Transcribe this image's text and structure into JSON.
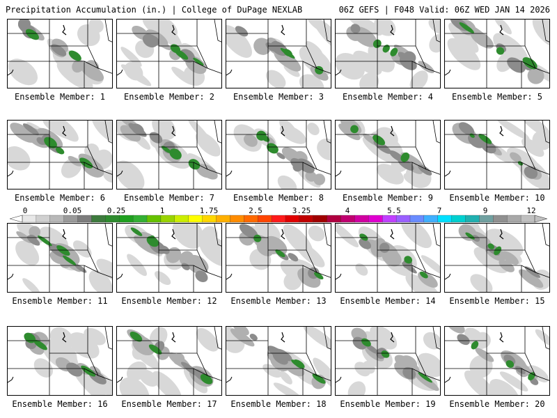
{
  "header": {
    "title_left": "Precipitation Accumulation (in.) | College of DuPage NEXLAB",
    "title_right": "06Z GEFS | F048 Valid: 06Z WED JAN 14 2026"
  },
  "member_label_prefix": "Ensemble Member:",
  "members": [
    {
      "label": "Ensemble Member: 1"
    },
    {
      "label": "Ensemble Member: 2"
    },
    {
      "label": "Ensemble Member: 3"
    },
    {
      "label": "Ensemble Member: 4"
    },
    {
      "label": "Ensemble Member: 5"
    },
    {
      "label": "Ensemble Member: 6"
    },
    {
      "label": "Ensemble Member: 7"
    },
    {
      "label": "Ensemble Member: 8"
    },
    {
      "label": "Ensemble Member: 9"
    },
    {
      "label": "Ensemble Member: 10"
    },
    {
      "label": "Ensemble Member: 11"
    },
    {
      "label": "Ensemble Member: 12"
    },
    {
      "label": "Ensemble Member: 13"
    },
    {
      "label": "Ensemble Member: 14"
    },
    {
      "label": "Ensemble Member: 15"
    },
    {
      "label": "Ensemble Member: 16"
    },
    {
      "label": "Ensemble Member: 17"
    },
    {
      "label": "Ensemble Member: 18"
    },
    {
      "label": "Ensemble Member: 19"
    },
    {
      "label": "Ensemble Member: 20"
    }
  ],
  "colorbar": {
    "ticks": [
      "0",
      "0.05",
      "0.25",
      "1",
      "1.75",
      "2.5",
      "3.25",
      "4",
      "5.5",
      "7",
      "9",
      "12"
    ],
    "colors": [
      "#e8e8e8",
      "#d0d0d0",
      "#b8b8b8",
      "#9a9a9a",
      "#7c7c7c",
      "#3d7a3d",
      "#2e8b2e",
      "#1fa01f",
      "#33b033",
      "#66c200",
      "#99d400",
      "#ccee00",
      "#ffff00",
      "#ffd700",
      "#ffb000",
      "#ff8c00",
      "#ff6a00",
      "#ff4500",
      "#ff1a1a",
      "#e00000",
      "#c00000",
      "#a00000",
      "#b00040",
      "#c00070",
      "#d000a0",
      "#e000d0",
      "#c040ff",
      "#9a60ff",
      "#6a8cff",
      "#40b0ff",
      "#00e0ff",
      "#00d0d0",
      "#20b0b0",
      "#70a0a0",
      "#909090",
      "#a8a8a8",
      "#c0c0c0"
    ]
  },
  "colors": {
    "green": "#2e8b2e",
    "dark_gray": "#8c8c8c",
    "mid_gray": "#b0b0b0",
    "light_gray": "#d8d8d8",
    "border": "#000000"
  }
}
